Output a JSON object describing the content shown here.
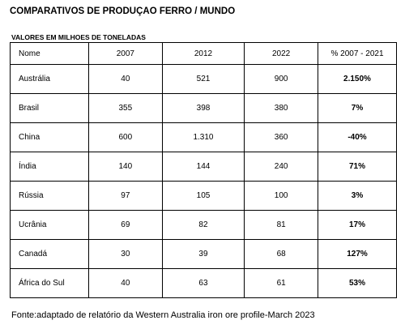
{
  "title": "COMPARATIVOS DE PRODUÇAO FERRO / MUNDO",
  "subtitle": "VALORES EM MILHOES DE TONELADAS",
  "table": {
    "header": [
      "Nome",
      "2007",
      "2012",
      "2022",
      "% 2007 - 2021"
    ],
    "rows": [
      [
        "Austrália",
        "40",
        "521",
        "900",
        "2.150%"
      ],
      [
        "Brasil",
        "355",
        "398",
        "380",
        "7%"
      ],
      [
        "China",
        "600",
        "1.310",
        "360",
        "-40%"
      ],
      [
        "Índia",
        "140",
        "144",
        "240",
        "71%"
      ],
      [
        "Rússia",
        "97",
        "105",
        "100",
        "3%"
      ],
      [
        "Ucrânia",
        "69",
        "82",
        "81",
        "17%"
      ],
      [
        "Canadá",
        "30",
        "39",
        "68",
        "127%"
      ],
      [
        "África do Sul",
        "40",
        "63",
        "61",
        "53%"
      ]
    ]
  },
  "footer": "Fonte:adaptado de relatório da Western Australia iron ore profile-March 2023"
}
